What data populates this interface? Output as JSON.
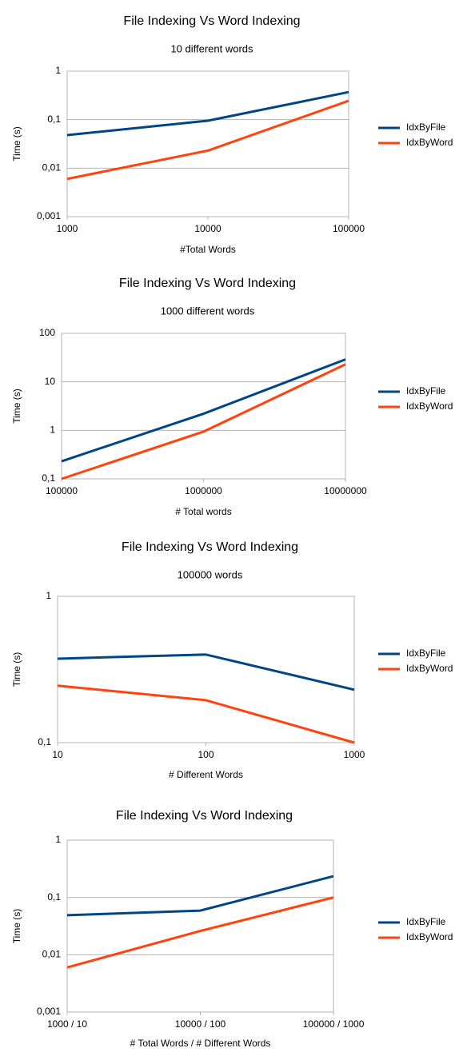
{
  "chart_data": [
    {
      "type": "line",
      "title": "File Indexing Vs Word Indexing",
      "subtitle": "10 different words",
      "x_label": "#Total Words",
      "y_label": "Time (s)",
      "x": [
        1000,
        10000,
        100000
      ],
      "xlim": [
        1000,
        100000
      ],
      "xticks": [
        1000,
        10000,
        100000
      ],
      "xlog": true,
      "ylim": [
        0.001,
        1
      ],
      "ylog": true,
      "yticks": [
        {
          "value": 0.001,
          "label": "0,001"
        },
        {
          "value": 0.01,
          "label": "0,01"
        },
        {
          "value": 0.1,
          "label": "0,1"
        },
        1
      ],
      "grid": true,
      "legend": "right",
      "series": [
        {
          "name": "IdxByFile",
          "color": "#004586",
          "values": [
            0.048,
            0.095,
            0.37
          ]
        },
        {
          "name": "IdxByWord",
          "color": "#ff420e",
          "values": [
            0.006,
            0.023,
            0.245
          ]
        }
      ]
    },
    {
      "type": "line",
      "title": "File Indexing Vs Word Indexing",
      "subtitle": "1000 different words",
      "x_label": "# Total words",
      "y_label": "Time (s)",
      "x": [
        100000,
        1000000,
        10000000
      ],
      "xlim": [
        100000,
        10000000
      ],
      "xticks": [
        100000,
        1000000,
        10000000
      ],
      "xlog": true,
      "ylim": [
        0.1,
        100
      ],
      "ylog": true,
      "yticks": [
        {
          "value": 0.1,
          "label": "0,1"
        },
        1,
        10,
        100
      ],
      "grid": true,
      "legend": "right",
      "series": [
        {
          "name": "IdxByFile",
          "color": "#004586",
          "values": [
            0.23,
            2.2,
            29
          ]
        },
        {
          "name": "IdxByWord",
          "color": "#ff420e",
          "values": [
            0.1,
            0.94,
            23
          ]
        }
      ]
    },
    {
      "type": "line",
      "title": "File Indexing Vs Word Indexing",
      "subtitle": "100000 words",
      "x_label": "# Different Words",
      "y_label": "Time (s)",
      "x": [
        10,
        100,
        1000
      ],
      "xlim": [
        10,
        1000
      ],
      "xticks": [
        10,
        100,
        1000
      ],
      "xlog": true,
      "ylim": [
        0.1,
        1
      ],
      "ylog": true,
      "yticks": [
        {
          "value": 0.1,
          "label": "0,1"
        },
        1
      ],
      "grid": true,
      "legend": "right",
      "series": [
        {
          "name": "IdxByFile",
          "color": "#004586",
          "values": [
            0.375,
            0.4,
            0.23
          ]
        },
        {
          "name": "IdxByWord",
          "color": "#ff420e",
          "values": [
            0.245,
            0.195,
            0.1
          ]
        }
      ]
    },
    {
      "type": "line",
      "title": "File Indexing Vs Word Indexing",
      "x_label": "# Total Words / # Different Words",
      "y_label": "Time (s)",
      "categories": [
        "1000 / 10",
        "10000 / 100",
        "100000 / 1000"
      ],
      "ylim": [
        0.001,
        1
      ],
      "ylog": true,
      "yticks": [
        {
          "value": 0.001,
          "label": "0,001"
        },
        {
          "value": 0.01,
          "label": "0,01"
        },
        {
          "value": 0.1,
          "label": "0,1"
        },
        1
      ],
      "grid": true,
      "legend": "right",
      "series": [
        {
          "name": "IdxByFile",
          "color": "#004586",
          "values": [
            0.049,
            0.059,
            0.235
          ]
        },
        {
          "name": "IdxByWord",
          "color": "#ff420e",
          "values": [
            0.006,
            0.026,
            0.1
          ]
        }
      ]
    }
  ]
}
